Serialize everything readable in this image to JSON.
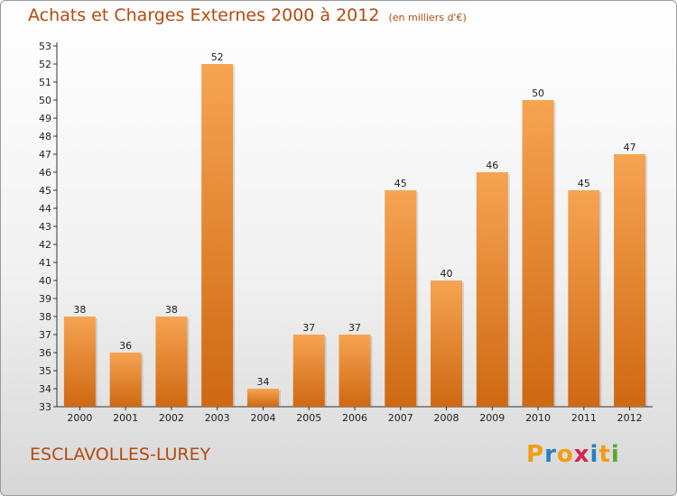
{
  "title": "Achats et Charges Externes 2000 à 2012",
  "unit_note": "(en milliers d'€)",
  "commune": "ESCLAVOLLES-LUREY",
  "logo": {
    "text": "Proxiti",
    "letters": [
      {
        "ch": "P",
        "color": "#f39c12"
      },
      {
        "ch": "r",
        "color": "#2a7fc1"
      },
      {
        "ch": "o",
        "color": "#f39c12"
      },
      {
        "ch": "x",
        "color": "#d8234f"
      },
      {
        "ch": "i",
        "color": "#2a7fc1"
      },
      {
        "ch": "t",
        "color": "#f39c12"
      },
      {
        "ch": "i",
        "color": "#5aab2b"
      }
    ]
  },
  "colors": {
    "bar_top": "#f6a452",
    "bar_bottom": "#cf6812",
    "text": "#b24a10"
  },
  "chart_data": {
    "type": "bar",
    "categories": [
      "2000",
      "2001",
      "2002",
      "2003",
      "2004",
      "2005",
      "2006",
      "2007",
      "2008",
      "2009",
      "2010",
      "2011",
      "2012"
    ],
    "values": [
      38,
      36,
      38,
      52,
      34,
      37,
      37,
      45,
      40,
      46,
      50,
      45,
      47
    ],
    "ylim": [
      33,
      53
    ],
    "yticks": [
      33,
      34,
      35,
      36,
      37,
      38,
      39,
      40,
      41,
      42,
      43,
      44,
      45,
      46,
      47,
      48,
      49,
      50,
      51,
      52,
      53
    ],
    "grid": false
  }
}
